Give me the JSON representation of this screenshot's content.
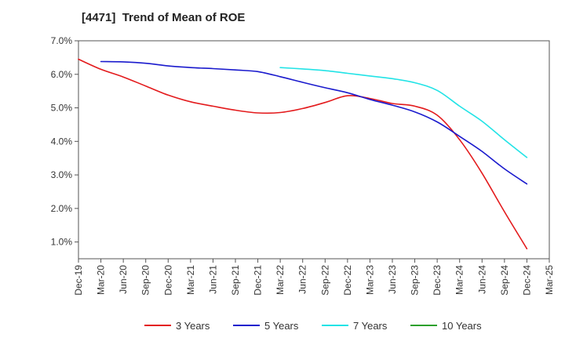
{
  "chart_data": {
    "type": "line",
    "title": "[4471]  Trend of Mean of ROE",
    "xlabel": "",
    "ylabel": "",
    "x_ticks": [
      "Dec-19",
      "Mar-20",
      "Jun-20",
      "Sep-20",
      "Dec-20",
      "Mar-21",
      "Jun-21",
      "Sep-21",
      "Dec-21",
      "Mar-22",
      "Jun-22",
      "Sep-22",
      "Dec-22",
      "Mar-23",
      "Jun-23",
      "Sep-23",
      "Dec-23",
      "Mar-24",
      "Jun-24",
      "Sep-24",
      "Dec-24",
      "Mar-25"
    ],
    "y_ticks": [
      "1.0%",
      "2.0%",
      "3.0%",
      "4.0%",
      "5.0%",
      "6.0%",
      "7.0%"
    ],
    "y_tick_values": [
      1,
      2,
      3,
      4,
      5,
      6,
      7
    ],
    "ylim": [
      0.5,
      7.0
    ],
    "grid": false,
    "legend_position": "bottom",
    "series": [
      {
        "name": "3 Years",
        "color": "#e31a1c",
        "x": [
          "Dec-19",
          "Mar-20",
          "Jun-20",
          "Sep-20",
          "Dec-20",
          "Mar-21",
          "Jun-21",
          "Sep-21",
          "Dec-21",
          "Mar-22",
          "Jun-22",
          "Sep-22",
          "Dec-22",
          "Mar-23",
          "Jun-23",
          "Sep-23",
          "Dec-23",
          "Mar-24",
          "Jun-24",
          "Sep-24",
          "Dec-24"
        ],
        "values": [
          6.45,
          6.15,
          5.92,
          5.65,
          5.38,
          5.18,
          5.05,
          4.93,
          4.85,
          4.86,
          4.98,
          5.16,
          5.36,
          5.28,
          5.13,
          5.05,
          4.78,
          4.05,
          3.05,
          1.9,
          0.8
        ]
      },
      {
        "name": "5 Years",
        "color": "#1a1acd",
        "x": [
          "Mar-20",
          "Jun-20",
          "Sep-20",
          "Dec-20",
          "Mar-21",
          "Jun-21",
          "Sep-21",
          "Dec-21",
          "Mar-22",
          "Jun-22",
          "Sep-22",
          "Dec-22",
          "Mar-23",
          "Jun-23",
          "Sep-23",
          "Dec-23",
          "Mar-24",
          "Jun-24",
          "Sep-24",
          "Dec-24"
        ],
        "values": [
          6.38,
          6.37,
          6.33,
          6.25,
          6.2,
          6.17,
          6.13,
          6.08,
          5.93,
          5.76,
          5.6,
          5.45,
          5.25,
          5.08,
          4.88,
          4.58,
          4.15,
          3.7,
          3.18,
          2.73
        ]
      },
      {
        "name": "7 Years",
        "color": "#22e3e6",
        "x": [
          "Mar-22",
          "Jun-22",
          "Sep-22",
          "Dec-22",
          "Mar-23",
          "Jun-23",
          "Sep-23",
          "Dec-23",
          "Mar-24",
          "Jun-24",
          "Sep-24",
          "Dec-24"
        ],
        "values": [
          6.2,
          6.16,
          6.11,
          6.03,
          5.95,
          5.87,
          5.75,
          5.52,
          5.05,
          4.6,
          4.05,
          3.52
        ]
      },
      {
        "name": "10 Years",
        "color": "#2ca02c",
        "x": [],
        "values": []
      }
    ]
  }
}
